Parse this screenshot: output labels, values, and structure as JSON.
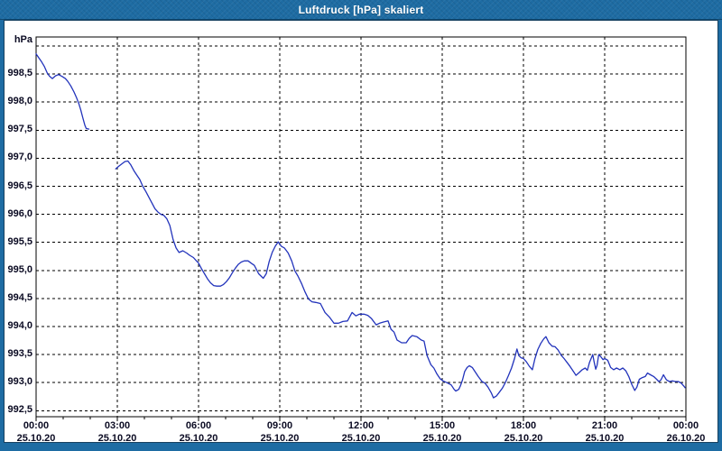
{
  "window": {
    "title": "Luftdruck [hPa] skaliert",
    "title_bar_color": "#1e6ca3",
    "border_color": "#1e6ca3",
    "inner_edge_color": "#16405f",
    "background_color": "#ffffff"
  },
  "chart_data": {
    "type": "line",
    "title": "Luftdruck [hPa] skaliert",
    "ylabel": "hPa",
    "xlabel": "",
    "grid": true,
    "legend": "none",
    "frame_color": "#000000",
    "gridline_color": "#000000",
    "line_color": "#2233bb",
    "text_color": "#0b0b23",
    "xlim_hours": [
      0,
      24
    ],
    "ylim": [
      992.4,
      999.16
    ],
    "x_axis": {
      "major_step_hours": 3,
      "minor_step_hours": 1,
      "ticks": [
        {
          "hour": 0,
          "time": "00:00",
          "date": "25.10.20"
        },
        {
          "hour": 3,
          "time": "03:00",
          "date": "25.10.20"
        },
        {
          "hour": 6,
          "time": "06:00",
          "date": "25.10.20"
        },
        {
          "hour": 9,
          "time": "09:00",
          "date": "25.10.20"
        },
        {
          "hour": 12,
          "time": "12:00",
          "date": "25.10.20"
        },
        {
          "hour": 15,
          "time": "15:00",
          "date": "25.10.20"
        },
        {
          "hour": 18,
          "time": "18:00",
          "date": "25.10.20"
        },
        {
          "hour": 21,
          "time": "21:00",
          "date": "25.10.20"
        },
        {
          "hour": 24,
          "time": "00:00",
          "date": "26.10.20"
        }
      ]
    },
    "y_axis": {
      "unit": "hPa",
      "gridline_step": 0.5,
      "gridline_values": [
        999.0,
        998.5,
        998.0,
        997.5,
        997.0,
        996.5,
        996.0,
        995.5,
        995.0,
        994.5,
        994.0,
        993.5,
        993.0,
        992.5
      ],
      "tick_labels": [
        {
          "value": 998.5,
          "label": "998,5"
        },
        {
          "value": 998.0,
          "label": "998,0"
        },
        {
          "value": 997.5,
          "label": "997,5"
        },
        {
          "value": 997.0,
          "label": "997,0"
        },
        {
          "value": 996.5,
          "label": "996,5"
        },
        {
          "value": 996.0,
          "label": "996,0"
        },
        {
          "value": 995.5,
          "label": "995,5"
        },
        {
          "value": 995.0,
          "label": "995,0"
        },
        {
          "value": 994.5,
          "label": "994,5"
        },
        {
          "value": 994.0,
          "label": "994,0"
        },
        {
          "value": 993.5,
          "label": "993,5"
        },
        {
          "value": 993.0,
          "label": "993,0"
        },
        {
          "value": 992.5,
          "label": "992,5"
        }
      ]
    },
    "series": [
      {
        "name": "Luftdruck",
        "unit": "hPa",
        "segments": [
          [
            [
              0.0,
              998.86
            ],
            [
              0.1,
              998.79
            ],
            [
              0.2,
              998.72
            ],
            [
              0.3,
              998.64
            ],
            [
              0.42,
              998.51
            ],
            [
              0.5,
              998.46
            ],
            [
              0.6,
              998.42
            ],
            [
              0.72,
              998.47
            ],
            [
              0.83,
              998.49
            ],
            [
              0.95,
              998.46
            ],
            [
              1.08,
              998.42
            ],
            [
              1.17,
              998.37
            ],
            [
              1.28,
              998.29
            ],
            [
              1.4,
              998.18
            ],
            [
              1.5,
              998.07
            ],
            [
              1.58,
              997.97
            ],
            [
              1.65,
              997.86
            ],
            [
              1.72,
              997.73
            ],
            [
              1.8,
              997.59
            ],
            [
              1.85,
              997.53
            ],
            [
              1.95,
              997.52
            ]
          ],
          [
            [
              2.94,
              996.81
            ],
            [
              3.06,
              996.86
            ],
            [
              3.17,
              996.9
            ],
            [
              3.28,
              996.94
            ],
            [
              3.39,
              996.95
            ],
            [
              3.5,
              996.88
            ],
            [
              3.61,
              996.78
            ],
            [
              3.72,
              996.7
            ],
            [
              3.83,
              996.62
            ],
            [
              3.94,
              996.5
            ],
            [
              4.06,
              996.4
            ],
            [
              4.17,
              996.3
            ],
            [
              4.28,
              996.2
            ],
            [
              4.39,
              996.1
            ],
            [
              4.5,
              996.04
            ],
            [
              4.61,
              996.0
            ],
            [
              4.72,
              995.98
            ],
            [
              4.83,
              995.92
            ],
            [
              4.94,
              995.8
            ],
            [
              5.06,
              995.55
            ],
            [
              5.17,
              995.4
            ],
            [
              5.28,
              995.32
            ],
            [
              5.42,
              995.35
            ],
            [
              5.56,
              995.31
            ],
            [
              5.67,
              995.27
            ],
            [
              5.81,
              995.23
            ],
            [
              5.92,
              995.17
            ],
            [
              6.0,
              995.13
            ],
            [
              6.11,
              995.03
            ],
            [
              6.22,
              994.94
            ],
            [
              6.33,
              994.85
            ],
            [
              6.44,
              994.78
            ],
            [
              6.56,
              994.73
            ],
            [
              6.67,
              994.72
            ],
            [
              6.81,
              994.72
            ],
            [
              6.92,
              994.75
            ],
            [
              7.03,
              994.8
            ],
            [
              7.14,
              994.87
            ],
            [
              7.25,
              994.96
            ],
            [
              7.36,
              995.04
            ],
            [
              7.47,
              995.11
            ],
            [
              7.58,
              995.15
            ],
            [
              7.69,
              995.17
            ],
            [
              7.83,
              995.17
            ],
            [
              7.94,
              995.13
            ],
            [
              8.06,
              995.09
            ],
            [
              8.22,
              994.94
            ],
            [
              8.39,
              994.86
            ],
            [
              8.5,
              994.94
            ],
            [
              8.61,
              995.16
            ],
            [
              8.72,
              995.32
            ],
            [
              8.83,
              995.43
            ],
            [
              8.94,
              995.51
            ],
            [
              9.06,
              995.43
            ],
            [
              9.17,
              995.4
            ],
            [
              9.31,
              995.31
            ],
            [
              9.44,
              995.17
            ],
            [
              9.56,
              994.99
            ],
            [
              9.67,
              994.9
            ],
            [
              9.81,
              994.76
            ],
            [
              9.92,
              994.63
            ],
            [
              10.06,
              994.49
            ],
            [
              10.19,
              994.44
            ],
            [
              10.33,
              994.43
            ],
            [
              10.5,
              994.41
            ],
            [
              10.67,
              994.25
            ],
            [
              10.83,
              994.17
            ],
            [
              11.0,
              994.06
            ],
            [
              11.17,
              994.06
            ],
            [
              11.33,
              994.09
            ],
            [
              11.5,
              994.1
            ],
            [
              11.67,
              994.25
            ],
            [
              11.81,
              994.19
            ],
            [
              11.94,
              994.22
            ],
            [
              12.11,
              994.22
            ],
            [
              12.25,
              994.2
            ],
            [
              12.39,
              994.14
            ],
            [
              12.56,
              994.03
            ],
            [
              12.69,
              994.06
            ],
            [
              12.83,
              994.08
            ],
            [
              13.0,
              994.1
            ],
            [
              13.11,
              993.95
            ],
            [
              13.22,
              993.9
            ],
            [
              13.33,
              993.76
            ],
            [
              13.5,
              993.71
            ],
            [
              13.67,
              993.71
            ],
            [
              13.78,
              993.79
            ],
            [
              13.89,
              993.84
            ],
            [
              14.06,
              993.82
            ],
            [
              14.22,
              993.76
            ],
            [
              14.33,
              993.74
            ],
            [
              14.44,
              993.48
            ],
            [
              14.58,
              993.32
            ],
            [
              14.69,
              993.26
            ],
            [
              14.81,
              993.15
            ],
            [
              14.92,
              993.07
            ],
            [
              15.03,
              993.03
            ],
            [
              15.17,
              993.0
            ],
            [
              15.33,
              992.96
            ],
            [
              15.44,
              992.88
            ],
            [
              15.5,
              992.85
            ],
            [
              15.61,
              992.88
            ],
            [
              15.67,
              992.94
            ],
            [
              15.75,
              993.05
            ],
            [
              15.83,
              993.2
            ],
            [
              15.92,
              993.27
            ],
            [
              16.0,
              993.3
            ],
            [
              16.11,
              993.27
            ],
            [
              16.22,
              993.19
            ],
            [
              16.33,
              993.11
            ],
            [
              16.47,
              993.02
            ],
            [
              16.58,
              992.99
            ],
            [
              16.69,
              992.92
            ],
            [
              16.81,
              992.82
            ],
            [
              16.89,
              992.73
            ],
            [
              17.0,
              992.76
            ],
            [
              17.11,
              992.83
            ],
            [
              17.22,
              992.9
            ],
            [
              17.33,
              993.0
            ],
            [
              17.44,
              993.12
            ],
            [
              17.56,
              993.26
            ],
            [
              17.67,
              993.43
            ],
            [
              17.76,
              993.6
            ],
            [
              17.83,
              993.48
            ],
            [
              17.92,
              993.44
            ],
            [
              18.0,
              993.43
            ],
            [
              18.11,
              993.37
            ],
            [
              18.22,
              993.29
            ],
            [
              18.33,
              993.23
            ],
            [
              18.42,
              993.42
            ],
            [
              18.53,
              993.59
            ],
            [
              18.64,
              993.7
            ],
            [
              18.75,
              993.78
            ],
            [
              18.83,
              993.82
            ],
            [
              18.94,
              993.71
            ],
            [
              19.06,
              993.65
            ],
            [
              19.17,
              993.64
            ],
            [
              19.28,
              993.58
            ],
            [
              19.39,
              993.49
            ],
            [
              19.5,
              993.43
            ],
            [
              19.61,
              993.36
            ],
            [
              19.72,
              993.29
            ],
            [
              19.83,
              993.21
            ],
            [
              19.94,
              993.13
            ],
            [
              20.06,
              993.18
            ],
            [
              20.17,
              993.23
            ],
            [
              20.28,
              993.26
            ],
            [
              20.36,
              993.22
            ],
            [
              20.44,
              993.36
            ],
            [
              20.56,
              993.5
            ],
            [
              20.61,
              993.37
            ],
            [
              20.67,
              993.24
            ],
            [
              20.72,
              993.31
            ],
            [
              20.78,
              993.5
            ],
            [
              20.86,
              993.46
            ],
            [
              20.94,
              993.41
            ],
            [
              21.0,
              993.43
            ],
            [
              21.11,
              993.4
            ],
            [
              21.22,
              993.27
            ],
            [
              21.33,
              993.23
            ],
            [
              21.44,
              993.26
            ],
            [
              21.56,
              993.23
            ],
            [
              21.67,
              993.26
            ],
            [
              21.78,
              993.21
            ],
            [
              21.89,
              993.11
            ],
            [
              22.0,
              992.97
            ],
            [
              22.11,
              992.86
            ],
            [
              22.19,
              992.92
            ],
            [
              22.28,
              993.06
            ],
            [
              22.39,
              993.09
            ],
            [
              22.5,
              993.11
            ],
            [
              22.58,
              993.17
            ],
            [
              22.69,
              993.14
            ],
            [
              22.81,
              993.11
            ],
            [
              22.92,
              993.06
            ],
            [
              23.0,
              993.02
            ],
            [
              23.08,
              993.05
            ],
            [
              23.17,
              993.14
            ],
            [
              23.28,
              993.05
            ],
            [
              23.39,
              993.02
            ],
            [
              23.5,
              993.03
            ],
            [
              23.61,
              993.02
            ],
            [
              23.72,
              993.02
            ],
            [
              23.83,
              992.99
            ],
            [
              23.92,
              992.94
            ],
            [
              23.97,
              992.91
            ]
          ]
        ]
      }
    ]
  }
}
